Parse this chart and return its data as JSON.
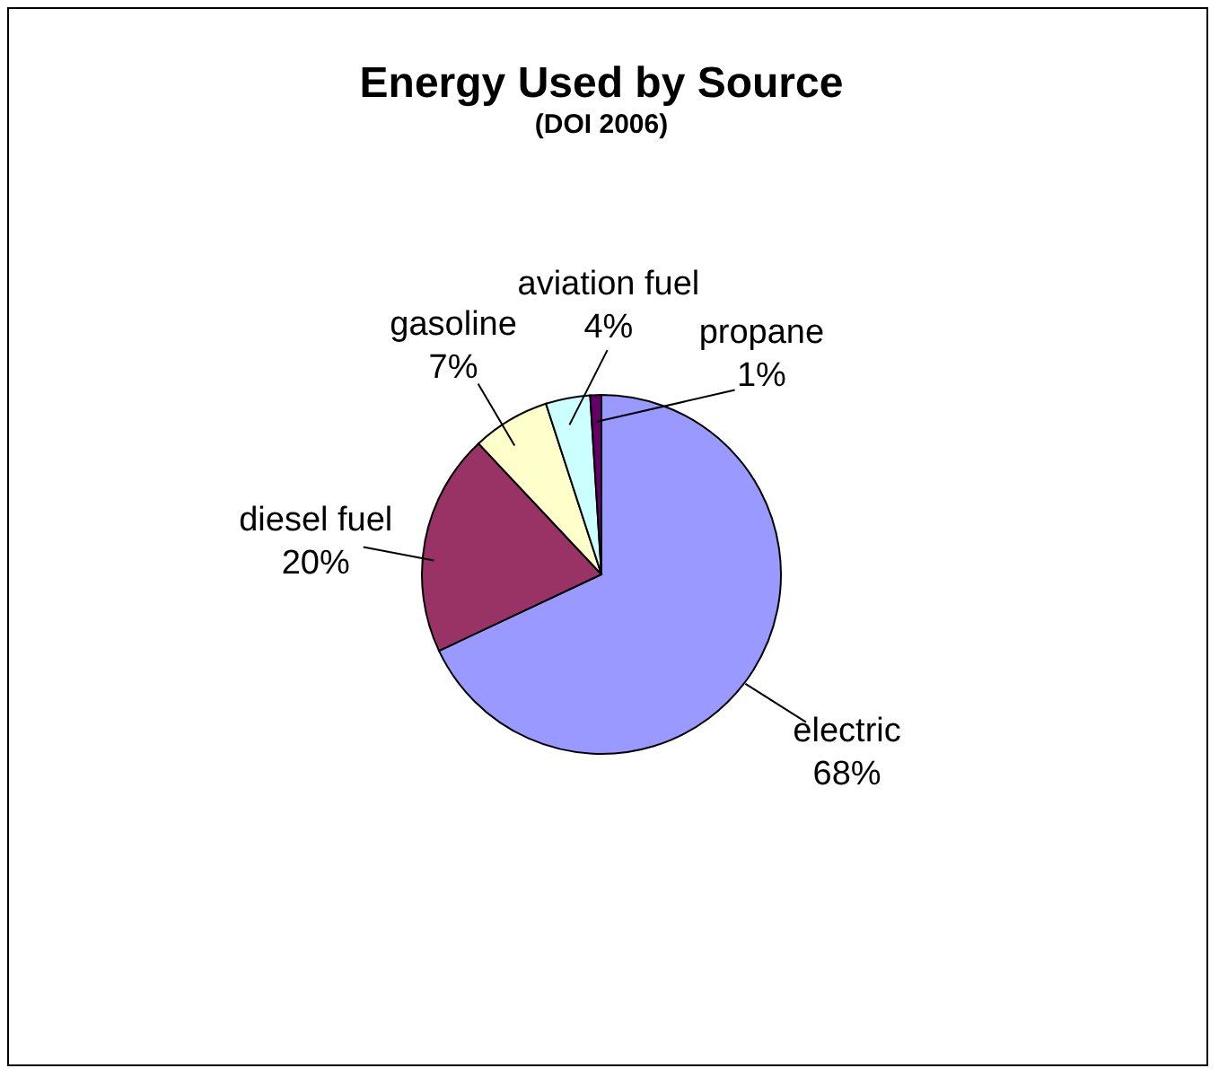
{
  "chart_data": {
    "type": "pie",
    "title": "Energy Used by Source",
    "subtitle": "(DOI 2006)",
    "categories": [
      "electric",
      "diesel fuel",
      "gasoline",
      "aviation fuel",
      "propane"
    ],
    "values": [
      68,
      20,
      7,
      4,
      1
    ],
    "value_labels": [
      "68%",
      "20%",
      "7%",
      "4%",
      "1%"
    ],
    "colors": [
      "#9999ff",
      "#993366",
      "#ffffcc",
      "#ccffff",
      "#660066"
    ],
    "legend": false
  }
}
